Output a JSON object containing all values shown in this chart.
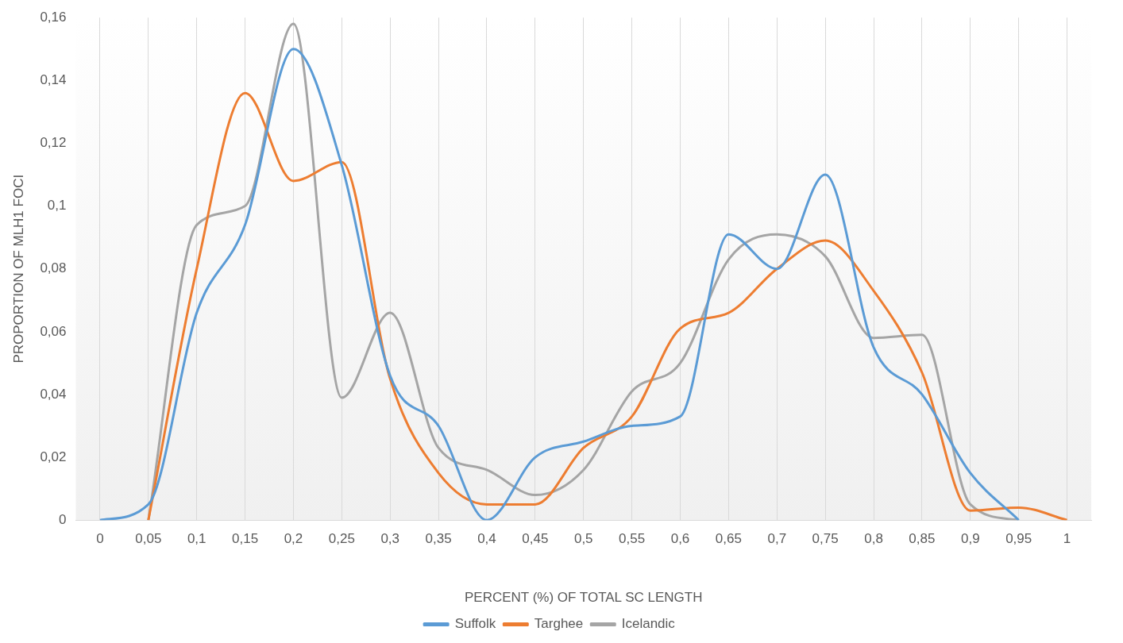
{
  "chart_data": {
    "type": "line",
    "xlabel": "PERCENT (%) OF TOTAL SC LENGTH",
    "ylabel": "PROPORTION OF MLH1 FOCI",
    "categories": [
      "0",
      "0,05",
      "0,1",
      "0,15",
      "0,2",
      "0,25",
      "0,3",
      "0,35",
      "0,4",
      "0,45",
      "0,5",
      "0,55",
      "0,6",
      "0,65",
      "0,7",
      "0,75",
      "0,8",
      "0,85",
      "0,9",
      "0,95",
      "1"
    ],
    "series": [
      {
        "name": "Suffolk",
        "color": "#5b9bd5",
        "values": [
          0,
          0.005,
          0.066,
          0.094,
          0.15,
          0.113,
          0.046,
          0.03,
          0,
          0.02,
          0.025,
          0.03,
          0.033,
          0.091,
          0.08,
          0.11,
          0.055,
          0.04,
          0.015,
          0,
          null
        ]
      },
      {
        "name": "Targhee",
        "color": "#ed7d31",
        "values": [
          null,
          0,
          0.08,
          0.136,
          0.108,
          0.114,
          0.045,
          0.015,
          0.005,
          0.005,
          0.023,
          0.033,
          0.061,
          0.066,
          0.08,
          0.089,
          0.073,
          0.047,
          0.003,
          0.004,
          0
        ]
      },
      {
        "name": "Icelandic",
        "color": "#a5a5a5",
        "values": [
          null,
          0,
          0.094,
          0.1,
          0.158,
          0.039,
          0.066,
          0.023,
          0.016,
          0.008,
          0.016,
          0.041,
          0.05,
          0.083,
          0.091,
          0.084,
          0.058,
          0.059,
          0.005,
          0,
          null
        ]
      }
    ],
    "ylim": [
      0,
      0.16
    ],
    "yticks": [
      0,
      {
        "value": 0.02,
        "label": "0,02"
      },
      {
        "value": 0.04,
        "label": "0,04"
      },
      {
        "value": 0.06,
        "label": "0,06"
      },
      {
        "value": 0.08,
        "label": "0,08"
      },
      {
        "value": 0.1,
        "label": "0,1"
      },
      {
        "value": 0.12,
        "label": "0,12"
      },
      {
        "value": 0.14,
        "label": "0,14"
      },
      {
        "value": 0.16,
        "label": "0,16"
      }
    ],
    "grid": "x",
    "legend": "bottom",
    "marker": "none",
    "line_style": "solid"
  }
}
